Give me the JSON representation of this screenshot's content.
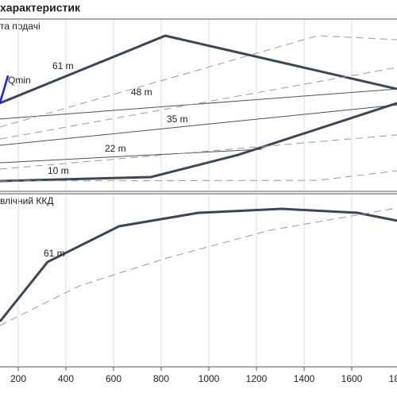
{
  "title": "характеристик",
  "chart_data": [
    {
      "type": "line",
      "title": "та подачі",
      "xlim": [
        123.3,
        1790
      ],
      "ylim": [
        0,
        100
      ],
      "grid": true,
      "series": [
        {
          "name": "61 m",
          "color": "#3b4656",
          "style": "thick",
          "x": [
            123,
            817,
            1790
          ],
          "values": [
            51.2,
            90.7,
            59.5
          ]
        },
        {
          "name": "48 m",
          "color": "#4a5060",
          "style": "thin",
          "x": [
            123,
            1790
          ],
          "values": [
            41.9,
            59.5
          ]
        },
        {
          "name": "35 m",
          "color": "#4a5060",
          "style": "thin",
          "x": [
            123,
            1790
          ],
          "values": [
            26.5,
            50.2
          ]
        },
        {
          "name": "22 m",
          "color": "#4a5060",
          "style": "thin",
          "x": [
            123,
            1223
          ],
          "values": [
            16.3,
            24.2
          ]
        },
        {
          "name": "10 m",
          "color": "#3b4656",
          "style": "thick",
          "x": [
            123,
            757,
            1123,
            1790
          ],
          "values": [
            5.6,
            7.9,
            20.9,
            51.2
          ]
        },
        {
          "color": "#999999",
          "style": "dashed",
          "x": [
            123,
            1457,
            1790
          ],
          "values": [
            37.2,
            90.7,
            88.4
          ]
        },
        {
          "color": "#999999",
          "style": "dashed",
          "x": [
            123,
            1790
          ],
          "values": [
            30.2,
            72.1
          ]
        },
        {
          "color": "#999999",
          "style": "dashed",
          "x": [
            123,
            1790
          ],
          "values": [
            12.6,
            32.6
          ]
        },
        {
          "color": "#999999",
          "style": "dashed",
          "x": [
            123,
            1457,
            1790
          ],
          "values": [
            5.6,
            6.0,
            11.6
          ]
        },
        {
          "name": "Qmin",
          "color": "#1a1aff",
          "style": "qmin",
          "x": [
            123,
            157
          ],
          "values": [
            51.2,
            67.4
          ]
        }
      ]
    },
    {
      "type": "line",
      "title": "влічний ККД",
      "xlim": [
        123.3,
        1790
      ],
      "ylim": [
        0,
        100
      ],
      "grid": true,
      "xticks": [
        200,
        400,
        600,
        800,
        1000,
        1200,
        1400,
        1600,
        1800
      ],
      "series": [
        {
          "name": "61 m",
          "color": "#3b4656",
          "style": "thick",
          "x": [
            123,
            323,
            623,
            957,
            1307,
            1623,
            1790
          ],
          "values": [
            25.6,
            60.5,
            81.4,
            89.3,
            91.6,
            89.3,
            84.7
          ]
        },
        {
          "color": "#999999",
          "style": "dashed",
          "x": [
            123,
            457,
            823,
            1257,
            1790
          ],
          "values": [
            23.3,
            46.5,
            62.8,
            79.1,
            92.1
          ]
        }
      ]
    }
  ]
}
